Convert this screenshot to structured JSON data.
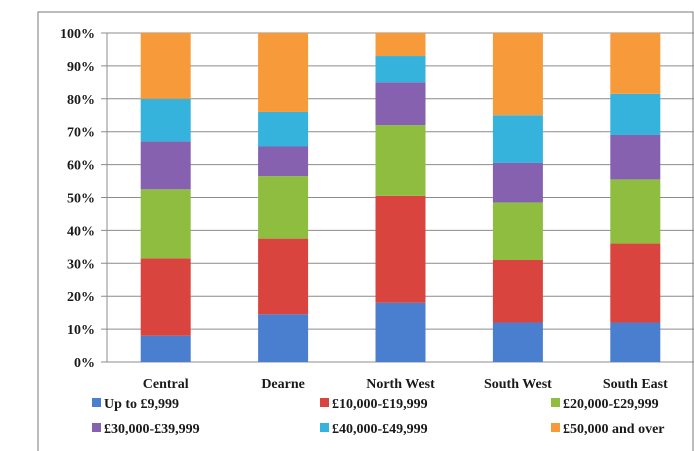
{
  "chart_data": {
    "type": "bar",
    "stacked": true,
    "categories": [
      "Central",
      "Dearne",
      "North West",
      "South West",
      "South East"
    ],
    "ylim": [
      0,
      100
    ],
    "yticks": [
      "0%",
      "10%",
      "20%",
      "30%",
      "40%",
      "50%",
      "60%",
      "70%",
      "80%",
      "90%",
      "100%"
    ],
    "grid": true,
    "legend_position": "bottom",
    "series": [
      {
        "name": "Up to £9,999",
        "color": "#4a7fd0",
        "values": [
          8,
          14.5,
          18,
          12,
          12
        ]
      },
      {
        "name": "£10,000-£19,999",
        "color": "#d9443f",
        "values": [
          23.5,
          23,
          32.5,
          19,
          24
        ]
      },
      {
        "name": "£20,000-£29,999",
        "color": "#8fbd3f",
        "values": [
          21,
          19,
          21.5,
          17.5,
          19.5
        ]
      },
      {
        "name": "£30,000-£39,999",
        "color": "#8561b0",
        "values": [
          14.5,
          9,
          13,
          12,
          13.5
        ]
      },
      {
        "name": "£40,000-£49,999",
        "color": "#36b3dd",
        "values": [
          13,
          10.5,
          8,
          14.5,
          12.5
        ]
      },
      {
        "name": "£50,000 and over",
        "color": "#f79b3a",
        "values": [
          20,
          24,
          7,
          25,
          18.5
        ]
      }
    ]
  }
}
